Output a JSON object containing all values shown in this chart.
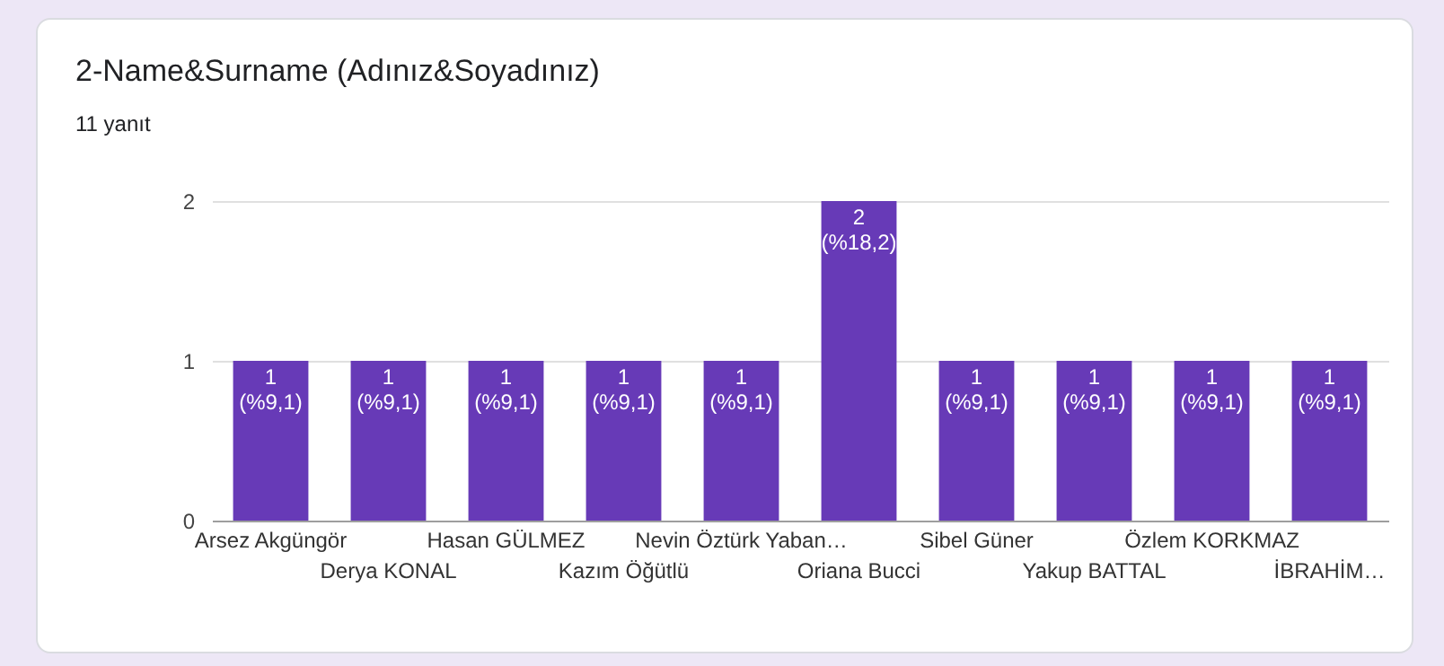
{
  "chart_data": {
    "type": "bar",
    "title": "2-Name&Surname (Adınız&Soyadınız)",
    "subtitle": "11 yanıt",
    "categories": [
      "Arsez Akgüngör",
      "Derya KONAL",
      "Hasan GÜLMEZ",
      "Kazım Öğütlü",
      "Nevin Öztürk Yaban…",
      "Oriana Bucci",
      "Sibel Güner",
      "Yakup BATTAL",
      "Özlem KORKMAZ",
      "İBRAHİM…"
    ],
    "values": [
      1,
      1,
      1,
      1,
      1,
      2,
      1,
      1,
      1,
      1
    ],
    "value_labels": [
      "1 (%9,1)",
      "1 (%9,1)",
      "1 (%9,1)",
      "1 (%9,1)",
      "1 (%9,1)",
      "2 (%18,2)",
      "1 (%9,1)",
      "1 (%9,1)",
      "1 (%9,1)",
      "1 (%9,1)"
    ],
    "color": "#673ab7",
    "ylim": [
      0,
      2
    ],
    "yticks": [
      0,
      1,
      2
    ],
    "grid": "y"
  }
}
